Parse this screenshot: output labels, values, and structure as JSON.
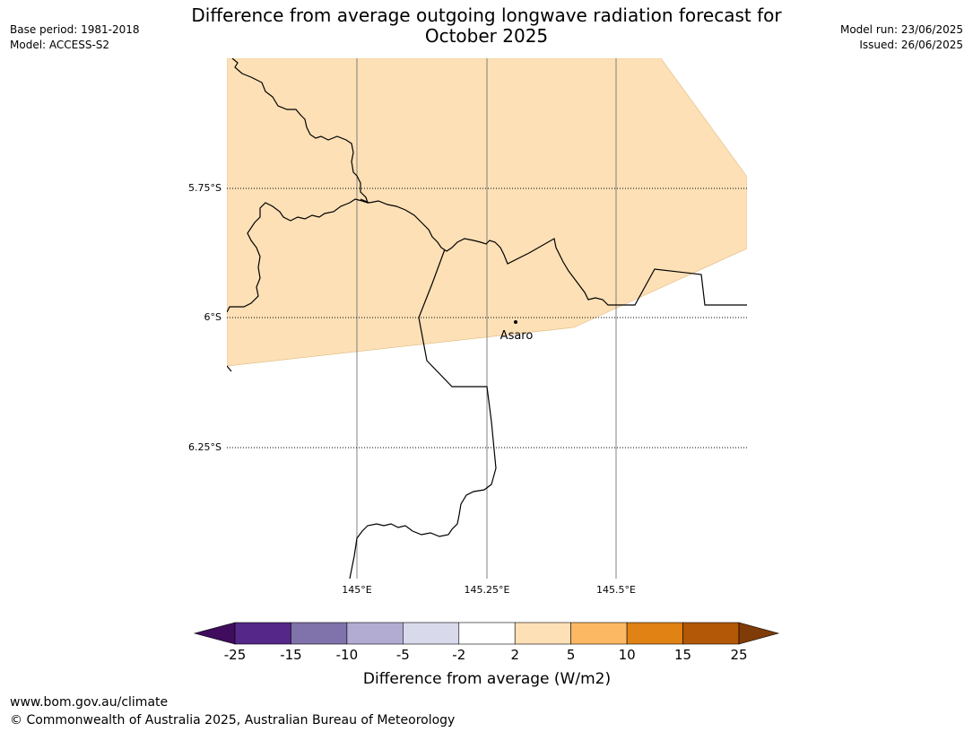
{
  "title_line1": "Difference from average outgoing longwave radiation forecast for",
  "title_line2": "October 2025",
  "meta_left": {
    "base_period": "Base period: 1981-2018",
    "model": "Model: ACCESS-S2"
  },
  "meta_right": {
    "model_run": "Model run: 23/06/2025",
    "issued": "Issued: 26/06/2025"
  },
  "map": {
    "lat_labels": [
      "5.75°S",
      "6°S",
      "6.25°S"
    ],
    "lon_labels": [
      "145°E",
      "145.25°E",
      "145.5°E"
    ],
    "place": {
      "name": "Asaro"
    },
    "fill_color": "#fde0b6",
    "fill_category": "2 to 5"
  },
  "colorbar": {
    "label": "Difference from average (W/m2)",
    "ticks": [
      "-25",
      "-15",
      "-10",
      "-5",
      "-2",
      "2",
      "5",
      "10",
      "15",
      "25"
    ],
    "colors": [
      "#3f0c5e",
      "#542788",
      "#8073ac",
      "#b2abd2",
      "#d8daeb",
      "#ffffff",
      "#fee0b6",
      "#fdb863",
      "#e08214",
      "#b35806",
      "#7f3b08"
    ]
  },
  "footer": {
    "url": "www.bom.gov.au/climate",
    "copyright": "© Commonwealth of Australia 2025, Australian Bureau of Meteorology"
  }
}
